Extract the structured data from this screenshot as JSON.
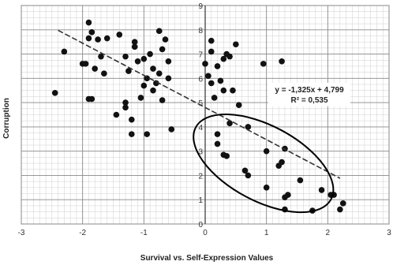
{
  "chart_data": {
    "type": "scatter",
    "title": "",
    "xlabel": "Survival vs. Self-Expression Values",
    "ylabel": "Corruption",
    "xlim": [
      -3,
      3
    ],
    "ylim": [
      0,
      9
    ],
    "x_ticks": [
      "-3",
      "-2",
      "-1",
      "0",
      "1",
      "2",
      "3"
    ],
    "y_ticks": [
      "0",
      "1",
      "2",
      "3",
      "4",
      "5",
      "6",
      "7",
      "8",
      "9"
    ],
    "grid": true,
    "minor_grid": true,
    "trendline": {
      "style": "dashed",
      "slope": -1.325,
      "intercept": 4.799,
      "x_range": [
        -2.4,
        2.2
      ]
    },
    "annotation": {
      "equation": "y = -1,325x + 4,799",
      "r_squared": "R² = 0,535",
      "anchor": [
        1.7,
        5.3
      ]
    },
    "highlight_ellipse": {
      "center": [
        0.95,
        2.5
      ],
      "radius_x": 1.25,
      "radius_y": 1.55,
      "rotation_deg": 28
    },
    "points": [
      [
        -1.9,
        8.3
      ],
      [
        -1.85,
        7.9
      ],
      [
        -1.75,
        7.6
      ],
      [
        -1.9,
        7.65
      ],
      [
        -1.6,
        7.65
      ],
      [
        -2.3,
        7.1
      ],
      [
        -2.0,
        6.6
      ],
      [
        -1.95,
        6.6
      ],
      [
        -1.7,
        6.9
      ],
      [
        -1.8,
        6.4
      ],
      [
        -1.65,
        6.2
      ],
      [
        -1.4,
        7.8
      ],
      [
        -1.3,
        6.9
      ],
      [
        -1.15,
        7.5
      ],
      [
        -1.15,
        7.3
      ],
      [
        -1.25,
        6.3
      ],
      [
        -1.1,
        6.7
      ],
      [
        -1.0,
        6.8
      ],
      [
        -0.75,
        7.95
      ],
      [
        -0.65,
        7.6
      ],
      [
        -0.9,
        7.0
      ],
      [
        -0.7,
        7.2
      ],
      [
        -0.85,
        6.4
      ],
      [
        -0.6,
        6.7
      ],
      [
        -0.75,
        6.2
      ],
      [
        -0.95,
        6.0
      ],
      [
        -0.8,
        5.8
      ],
      [
        -1.0,
        5.7
      ],
      [
        -0.85,
        5.5
      ],
      [
        -0.6,
        6.0
      ],
      [
        -0.7,
        5.1
      ],
      [
        -1.05,
        5.2
      ],
      [
        -1.3,
        5.0
      ],
      [
        -1.3,
        4.8
      ],
      [
        -2.45,
        5.4
      ],
      [
        -1.9,
        5.15
      ],
      [
        -1.85,
        5.15
      ],
      [
        -1.45,
        4.5
      ],
      [
        -1.2,
        4.3
      ],
      [
        -1.2,
        3.7
      ],
      [
        -0.95,
        3.7
      ],
      [
        -0.55,
        3.9
      ],
      [
        0.1,
        7.55
      ],
      [
        0.1,
        7.1
      ],
      [
        0.0,
        6.6
      ],
      [
        0.2,
        6.5
      ],
      [
        0.5,
        7.4
      ],
      [
        0.35,
        7.0
      ],
      [
        0.3,
        6.8
      ],
      [
        0.4,
        6.9
      ],
      [
        0.05,
        6.1
      ],
      [
        0.25,
        5.9
      ],
      [
        0.3,
        5.5
      ],
      [
        0.1,
        5.8
      ],
      [
        0.15,
        5.2
      ],
      [
        0.45,
        5.5
      ],
      [
        0.55,
        4.9
      ],
      [
        0.95,
        6.6
      ],
      [
        1.25,
        6.7
      ],
      [
        0.4,
        4.15
      ],
      [
        0.2,
        3.7
      ],
      [
        0.7,
        4.0
      ],
      [
        0.2,
        3.3
      ],
      [
        0.3,
        2.85
      ],
      [
        0.35,
        2.8
      ],
      [
        0.65,
        2.2
      ],
      [
        0.7,
        2.0
      ],
      [
        1.0,
        3.0
      ],
      [
        1.3,
        3.1
      ],
      [
        1.25,
        2.55
      ],
      [
        1.2,
        2.4
      ],
      [
        1.55,
        1.8
      ],
      [
        1.0,
        1.5
      ],
      [
        1.35,
        1.2
      ],
      [
        1.3,
        1.1
      ],
      [
        1.9,
        1.4
      ],
      [
        2.05,
        1.2
      ],
      [
        2.1,
        1.2
      ],
      [
        1.3,
        0.6
      ],
      [
        1.75,
        0.55
      ],
      [
        2.2,
        0.6
      ],
      [
        2.25,
        0.85
      ]
    ]
  }
}
